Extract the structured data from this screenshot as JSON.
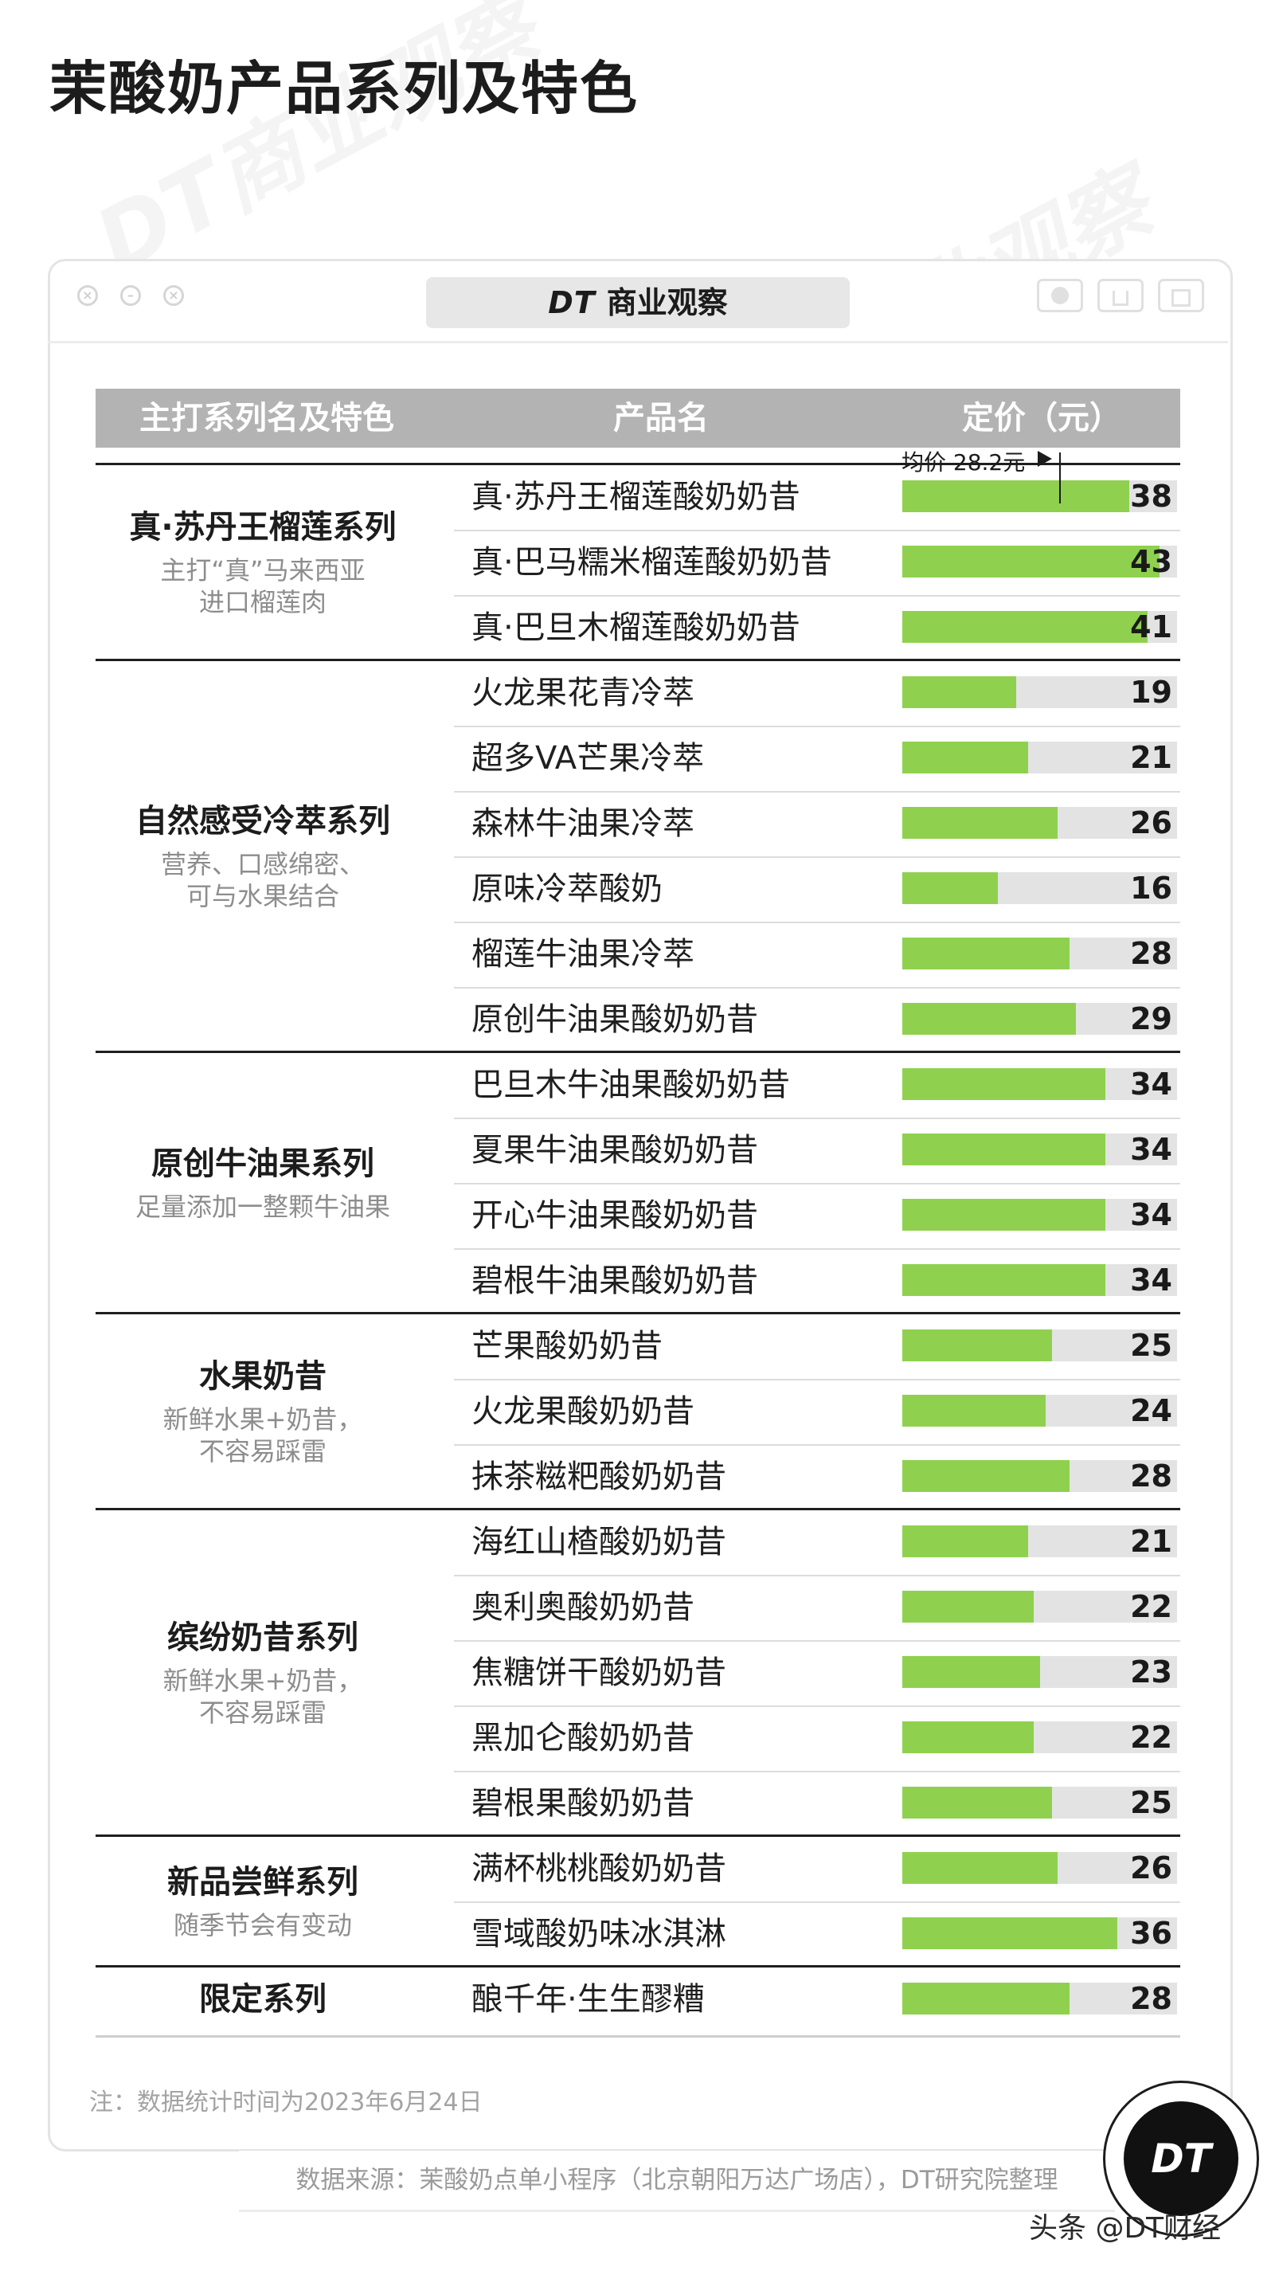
{
  "page": {
    "title": "茉酸奶产品系列及特色"
  },
  "window": {
    "brand_mark": "DT",
    "brand_name": "商业观察",
    "watermark": "DT商业观察"
  },
  "table": {
    "headers": {
      "series": "主打系列名及特色",
      "product": "产品名",
      "price": "定价（元）"
    },
    "average": {
      "label": "均价 28.2元",
      "value": 28.2
    },
    "groups": [
      {
        "name": "真·苏丹王榴莲系列",
        "desc": "主打“真”马来西亚\n进口榴莲肉",
        "products": [
          {
            "name": "真·苏丹王榴莲酸奶奶昔",
            "price": 38
          },
          {
            "name": "真·巴马糯米榴莲酸奶奶昔",
            "price": 43
          },
          {
            "name": "真·巴旦木榴莲酸奶奶昔",
            "price": 41
          }
        ]
      },
      {
        "name": "自然感受冷萃系列",
        "desc": "营养、口感绵密、\n可与水果结合",
        "products": [
          {
            "name": "火龙果花青冷萃",
            "price": 19
          },
          {
            "name": "超多VA芒果冷萃",
            "price": 21
          },
          {
            "name": "森林牛油果冷萃",
            "price": 26
          },
          {
            "name": "原味冷萃酸奶",
            "price": 16
          },
          {
            "name": "榴莲牛油果冷萃",
            "price": 28
          },
          {
            "name": "原创牛油果酸奶奶昔",
            "price": 29
          }
        ]
      },
      {
        "name": "原创牛油果系列",
        "desc": "足量添加一整颗牛油果",
        "products": [
          {
            "name": "巴旦木牛油果酸奶奶昔",
            "price": 34
          },
          {
            "name": "夏果牛油果酸奶奶昔",
            "price": 34
          },
          {
            "name": "开心牛油果酸奶奶昔",
            "price": 34
          },
          {
            "name": "碧根牛油果酸奶奶昔",
            "price": 34
          }
        ]
      },
      {
        "name": "水果奶昔",
        "desc": "新鲜水果+奶昔，\n不容易踩雷",
        "products": [
          {
            "name": "芒果酸奶奶昔",
            "price": 25
          },
          {
            "name": "火龙果酸奶奶昔",
            "price": 24
          },
          {
            "name": "抹茶糍粑酸奶奶昔",
            "price": 28
          }
        ]
      },
      {
        "name": "缤纷奶昔系列",
        "desc": "新鲜水果+奶昔，\n不容易踩雷",
        "products": [
          {
            "name": "海红山楂酸奶奶昔",
            "price": 21
          },
          {
            "name": "奥利奥酸奶奶昔",
            "price": 22
          },
          {
            "name": "焦糖饼干酸奶奶昔",
            "price": 23
          },
          {
            "name": "黑加仑酸奶奶昔",
            "price": 22
          },
          {
            "name": "碧根果酸奶奶昔",
            "price": 25
          }
        ]
      },
      {
        "name": "新品尝鲜系列",
        "desc": "随季节会有变动",
        "products": [
          {
            "name": "满杯桃桃酸奶奶昔",
            "price": 26
          },
          {
            "name": "雪域酸奶味冰淇淋",
            "price": 36
          }
        ]
      },
      {
        "name": "限定系列",
        "desc": "",
        "products": [
          {
            "name": "酿千年·生生醪糟",
            "price": 28
          }
        ]
      }
    ]
  },
  "chart_data": {
    "type": "bar",
    "orientation": "horizontal",
    "title": "茉酸奶产品系列及特色",
    "ylabel": "定价（元）",
    "reference_line": {
      "label": "均价 28.2元",
      "value": 28.2
    },
    "categories": [
      "真·苏丹王榴莲酸奶奶昔",
      "真·巴马糯米榴莲酸奶奶昔",
      "真·巴旦木榴莲酸奶奶昔",
      "火龙果花青冷萃",
      "超多VA芒果冷萃",
      "森林牛油果冷萃",
      "原味冷萃酸奶",
      "榴莲牛油果冷萃",
      "原创牛油果酸奶奶昔",
      "巴旦木牛油果酸奶奶昔",
      "夏果牛油果酸奶奶昔",
      "开心牛油果酸奶奶昔",
      "碧根牛油果酸奶奶昔",
      "芒果酸奶奶昔",
      "火龙果酸奶奶昔",
      "抹茶糍粑酸奶奶昔",
      "海红山楂酸奶奶昔",
      "奥利奥酸奶奶昔",
      "焦糖饼干酸奶奶昔",
      "黑加仑酸奶奶昔",
      "碧根果酸奶奶昔",
      "满杯桃桃酸奶奶昔",
      "雪域酸奶味冰淇淋",
      "酿千年·生生醪糟"
    ],
    "values": [
      38,
      43,
      41,
      19,
      21,
      26,
      16,
      28,
      29,
      34,
      34,
      34,
      34,
      25,
      24,
      28,
      21,
      22,
      23,
      22,
      25,
      26,
      36,
      28
    ],
    "xlim": [
      0,
      46
    ],
    "colors": {
      "bar": "#8fd14f",
      "track": "#e3e3e3"
    }
  },
  "footer": {
    "note": "注：数据统计时间为2023年6月24日",
    "source": "数据来源：茉酸奶点单小程序（北京朝阳万达广场店），DT研究院整理",
    "badge": "DT",
    "credit": "头条 @DT财经"
  }
}
